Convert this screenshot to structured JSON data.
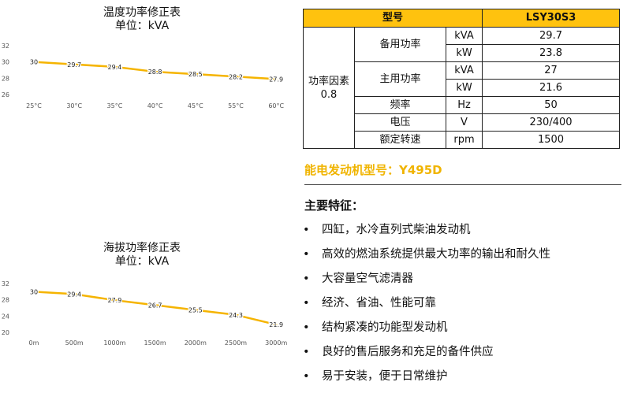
{
  "chart_data": [
    {
      "type": "line",
      "title": "温度功率修正表",
      "subtitle": "单位：kVA",
      "categories": [
        "25°C",
        "30°C",
        "35°C",
        "40°C",
        "45°C",
        "55°C",
        "60°C"
      ],
      "values": [
        30,
        29.7,
        29.4,
        28.8,
        28.5,
        28.2,
        27.9
      ],
      "data_labels": [
        "30",
        "29.7",
        "29.4",
        "28.8",
        "28.5",
        "28.2",
        "27.9"
      ],
      "yticks": [
        "26",
        "28",
        "30",
        "32"
      ],
      "ylim": [
        26,
        32
      ],
      "grid": false,
      "color": "#F5B400"
    },
    {
      "type": "line",
      "title": "海拔功率修正表",
      "subtitle": "单位：kVA",
      "categories": [
        "0m",
        "500m",
        "1000m",
        "1500m",
        "2000m",
        "2500m",
        "3000m"
      ],
      "values": [
        30,
        29.4,
        27.9,
        26.7,
        25.5,
        24.3,
        21.9
      ],
      "data_labels": [
        "30",
        "29.4",
        "27.9",
        "26.7",
        "25.5",
        "24.3",
        "21.9"
      ],
      "yticks": [
        "20",
        "24",
        "28",
        "32"
      ],
      "ylim": [
        20,
        32
      ],
      "grid": false,
      "color": "#F5B400"
    }
  ],
  "spec": {
    "header": [
      "型号",
      "LSY30S3"
    ],
    "power_factor": "功率因素\n0.8",
    "standby": "备用功率",
    "prime": "主用功率",
    "rows": [
      {
        "unit": "kVA",
        "value": "29.7"
      },
      {
        "unit": "kW",
        "value": "23.8"
      },
      {
        "unit": "kVA",
        "value": "27"
      },
      {
        "unit": "kW",
        "value": "21.6"
      }
    ],
    "freq": {
      "label": "频率",
      "unit": "Hz",
      "value": "50"
    },
    "voltage": {
      "label": "电压",
      "unit": "V",
      "value": "230/400"
    },
    "speed": {
      "label": "额定转速",
      "unit": "rpm",
      "value": "1500"
    }
  },
  "engine": "能电发动机型号：Y495D",
  "features_title": "主要特征：",
  "bullet": "•",
  "features": [
    "四缸，水冷直列式柴油发动机",
    "高效的燃油系统提供最大功率的输出和耐久性",
    "大容量空气滤清器",
    "经济、省油、性能可靠",
    "结构紧凑的功能型发动机",
    "良好的售后服务和充足的备件供应",
    "易于安装，便于日常维护"
  ],
  "colors": {
    "accent": "#FFC20E",
    "line": "#F5B400",
    "engine_text": "#F0B400"
  }
}
